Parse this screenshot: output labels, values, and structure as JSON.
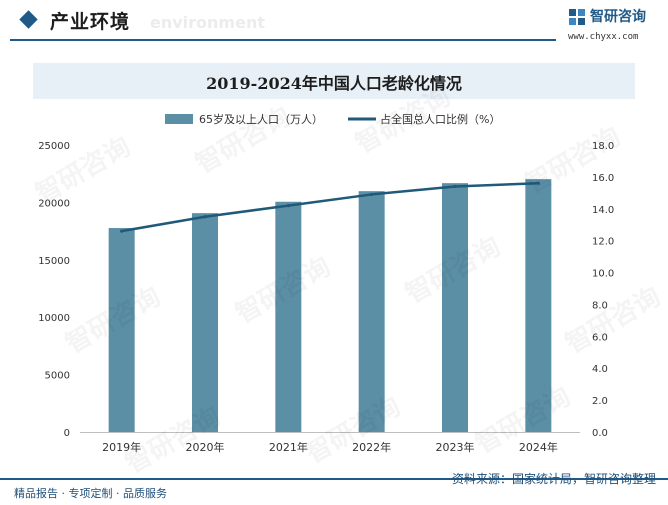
{
  "header": {
    "section_title": "产业环境",
    "section_subtitle": "environment",
    "brand_name": "智研咨询",
    "brand_url": "www.chyxx.com"
  },
  "watermark_text": "智研咨询",
  "chart_data": {
    "type": "bar",
    "title": "2019-2024年中国人口老龄化情况",
    "categories": [
      "2019年",
      "2020年",
      "2021年",
      "2022年",
      "2023年",
      "2024年"
    ],
    "series": [
      {
        "name": "65岁及以上人口（万人）",
        "type": "bar",
        "axis": "left",
        "color": "#5b8fa6",
        "values": [
          17767,
          19064,
          20056,
          20978,
          21676,
          22023
        ]
      },
      {
        "name": "占全国总人口比例（%）",
        "type": "line",
        "axis": "right",
        "color": "#1f5a7a",
        "values": [
          12.6,
          13.5,
          14.2,
          14.9,
          15.4,
          15.6
        ]
      }
    ],
    "y_left": {
      "range": [
        0,
        25000
      ],
      "ticks": [
        "0",
        "5000",
        "10000",
        "15000",
        "20000",
        "25000"
      ]
    },
    "y_right": {
      "range": [
        0,
        18
      ],
      "ticks": [
        "0.0",
        "2.0",
        "4.0",
        "6.0",
        "8.0",
        "10.0",
        "12.0",
        "14.0",
        "16.0",
        "18.0"
      ]
    },
    "legend_position": "top-center",
    "grid": false
  },
  "footer": {
    "left_text": "精品报告 · 专项定制 · 品质服务",
    "source_text": "资料来源：国家统计局，智研咨询整理"
  }
}
